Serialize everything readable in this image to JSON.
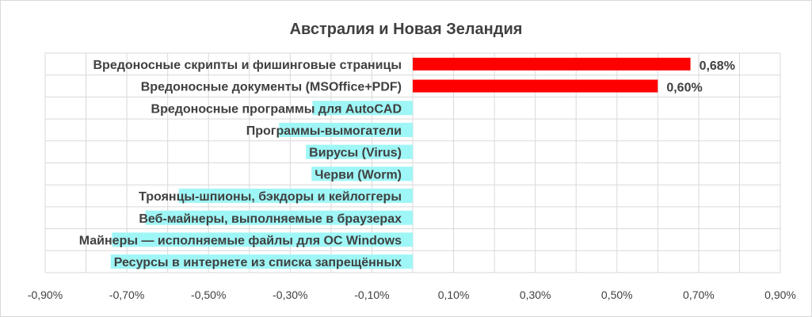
{
  "chart_data": {
    "type": "bar",
    "orientation": "horizontal",
    "title": "Австралия и Новая Зеландия",
    "xlabel": "",
    "ylabel": "",
    "xlim": [
      -0.9,
      0.9
    ],
    "grid": true,
    "categories": [
      "Вредоносные скрипты и фишинговые страницы",
      "Вредоносные документы (MSOffice+PDF)",
      "Вредоносные программы для AutoCAD",
      "Программы-вымогатели",
      "Вирусы (Virus)",
      "Черви (Worm)",
      "Троянцы-шпионы, бэкдоры и кейлоггеры",
      "Веб-майнеры, выполняемые в браузерах",
      "Майнеры — исполняемые файлы для ОС Windows",
      "Ресурсы в интернете из списка запрещённых"
    ],
    "values": [
      0.68,
      0.6,
      0,
      0,
      0,
      0,
      0,
      0,
      0,
      0
    ],
    "data_labels": [
      "0,68%",
      "0,60%",
      "",
      "",
      "",
      "",
      "",
      "",
      "",
      ""
    ],
    "x_ticks": [
      "-0,90%",
      "-0,70%",
      "-0,50%",
      "-0,30%",
      "-0,10%",
      "0,10%",
      "0,30%",
      "0,50%",
      "0,70%",
      "0,90%"
    ],
    "bar_color": "#ff0000",
    "label_highlight_color": "#9ff6f6"
  }
}
